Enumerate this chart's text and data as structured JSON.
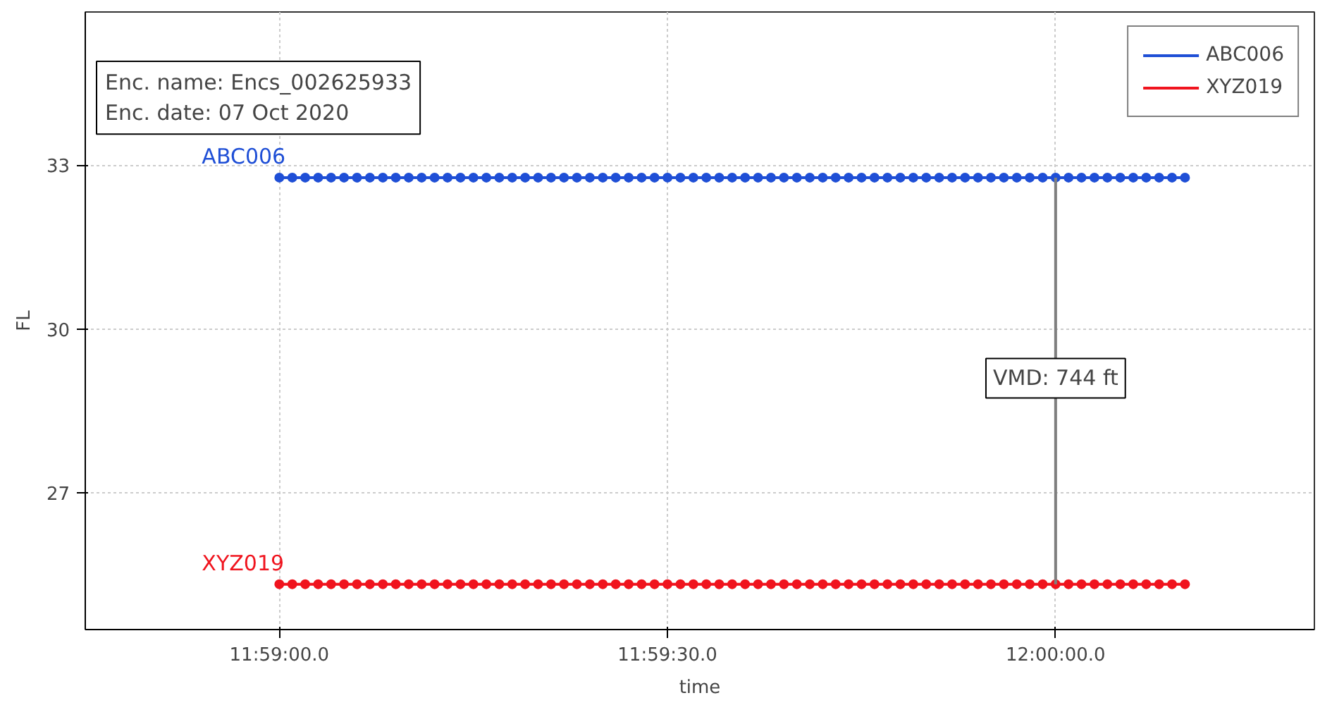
{
  "chart_data": {
    "type": "line",
    "xlabel": "time",
    "ylabel": "FL",
    "x": [
      "2020-10-07T11:59:00",
      "2020-10-07T11:59:01",
      "2020-10-07T11:59:02",
      "2020-10-07T11:59:03",
      "2020-10-07T11:59:04",
      "2020-10-07T11:59:05",
      "2020-10-07T11:59:06",
      "2020-10-07T11:59:07",
      "2020-10-07T11:59:08",
      "2020-10-07T11:59:09",
      "2020-10-07T11:59:10",
      "2020-10-07T11:59:11",
      "2020-10-07T11:59:12",
      "2020-10-07T11:59:13",
      "2020-10-07T11:59:14",
      "2020-10-07T11:59:15",
      "2020-10-07T11:59:16",
      "2020-10-07T11:59:17",
      "2020-10-07T11:59:18",
      "2020-10-07T11:59:19",
      "2020-10-07T11:59:20",
      "2020-10-07T11:59:21",
      "2020-10-07T11:59:22",
      "2020-10-07T11:59:23",
      "2020-10-07T11:59:24",
      "2020-10-07T11:59:25",
      "2020-10-07T11:59:26",
      "2020-10-07T11:59:27",
      "2020-10-07T11:59:28",
      "2020-10-07T11:59:29",
      "2020-10-07T11:59:30",
      "2020-10-07T11:59:31",
      "2020-10-07T11:59:32",
      "2020-10-07T11:59:33",
      "2020-10-07T11:59:34",
      "2020-10-07T11:59:35",
      "2020-10-07T11:59:36",
      "2020-10-07T11:59:37",
      "2020-10-07T11:59:38",
      "2020-10-07T11:59:39",
      "2020-10-07T11:59:40",
      "2020-10-07T11:59:41",
      "2020-10-07T11:59:42",
      "2020-10-07T11:59:43",
      "2020-10-07T11:59:44",
      "2020-10-07T11:59:45",
      "2020-10-07T11:59:46",
      "2020-10-07T11:59:47",
      "2020-10-07T11:59:48",
      "2020-10-07T11:59:49",
      "2020-10-07T11:59:50",
      "2020-10-07T11:59:51",
      "2020-10-07T11:59:52",
      "2020-10-07T11:59:53",
      "2020-10-07T11:59:54",
      "2020-10-07T11:59:55",
      "2020-10-07T11:59:56",
      "2020-10-07T11:59:57",
      "2020-10-07T11:59:58",
      "2020-10-07T11:59:59",
      "2020-10-07T12:00:00",
      "2020-10-07T12:00:01",
      "2020-10-07T12:00:02",
      "2020-10-07T12:00:03",
      "2020-10-07T12:00:04",
      "2020-10-07T12:00:05",
      "2020-10-07T12:00:06",
      "2020-10-07T12:00:07",
      "2020-10-07T12:00:08",
      "2020-10-07T12:00:09",
      "2020-10-07T12:00:10"
    ],
    "series": [
      {
        "name": "ABC006",
        "color": "#1f4fd6",
        "values": [
          32.77,
          32.77,
          32.77,
          32.77,
          32.77,
          32.77,
          32.77,
          32.77,
          32.77,
          32.77,
          32.77,
          32.77,
          32.77,
          32.77,
          32.77,
          32.77,
          32.77,
          32.77,
          32.77,
          32.77,
          32.77,
          32.77,
          32.77,
          32.77,
          32.77,
          32.77,
          32.77,
          32.77,
          32.77,
          32.77,
          32.77,
          32.77,
          32.77,
          32.77,
          32.77,
          32.77,
          32.77,
          32.77,
          32.77,
          32.77,
          32.77,
          32.77,
          32.77,
          32.77,
          32.77,
          32.77,
          32.77,
          32.77,
          32.77,
          32.77,
          32.77,
          32.77,
          32.77,
          32.77,
          32.77,
          32.77,
          32.77,
          32.77,
          32.77,
          32.77,
          32.77,
          32.77,
          32.77,
          32.77,
          32.77,
          32.77,
          32.77,
          32.77,
          32.77,
          32.77,
          32.77
        ]
      },
      {
        "name": "XYZ019",
        "color": "#f0141e",
        "values": [
          25.33,
          25.33,
          25.33,
          25.33,
          25.33,
          25.33,
          25.33,
          25.33,
          25.33,
          25.33,
          25.33,
          25.33,
          25.33,
          25.33,
          25.33,
          25.33,
          25.33,
          25.33,
          25.33,
          25.33,
          25.33,
          25.33,
          25.33,
          25.33,
          25.33,
          25.33,
          25.33,
          25.33,
          25.33,
          25.33,
          25.33,
          25.33,
          25.33,
          25.33,
          25.33,
          25.33,
          25.33,
          25.33,
          25.33,
          25.33,
          25.33,
          25.33,
          25.33,
          25.33,
          25.33,
          25.33,
          25.33,
          25.33,
          25.33,
          25.33,
          25.33,
          25.33,
          25.33,
          25.33,
          25.33,
          25.33,
          25.33,
          25.33,
          25.33,
          25.33,
          25.33,
          25.33,
          25.33,
          25.33,
          25.33,
          25.33,
          25.33,
          25.33,
          25.33,
          25.33,
          25.33
        ]
      },
      {
        "color": "#7f7f7f",
        "marker": "none",
        "x": [
          "2020-10-07T12:00:00",
          "2020-10-07T12:00:00"
        ],
        "values": [
          25.33,
          32.77
        ]
      }
    ],
    "annotations": [
      "Enc. name: Encs_002625933",
      "Enc. date: 07 Oct 2020",
      {
        "text": "VMD: 744 ft",
        "x": "2020-10-07T12:00:00",
        "y": 29.1
      }
    ],
    "xlim": [
      "2020-10-07T11:58:45",
      "2020-10-07T12:00:20"
    ],
    "xticks": [
      {
        "value": "2020-10-07T11:59:00",
        "label": "11:59:00.0"
      },
      {
        "value": "2020-10-07T11:59:30",
        "label": "11:59:30.0"
      },
      {
        "value": "2020-10-07T12:00:00",
        "label": "12:00:00.0"
      }
    ],
    "ylim": [
      24.5,
      35.8
    ],
    "yticks": [
      27,
      30,
      33
    ],
    "grid": true,
    "legend": "top right",
    "marker": "circle"
  }
}
